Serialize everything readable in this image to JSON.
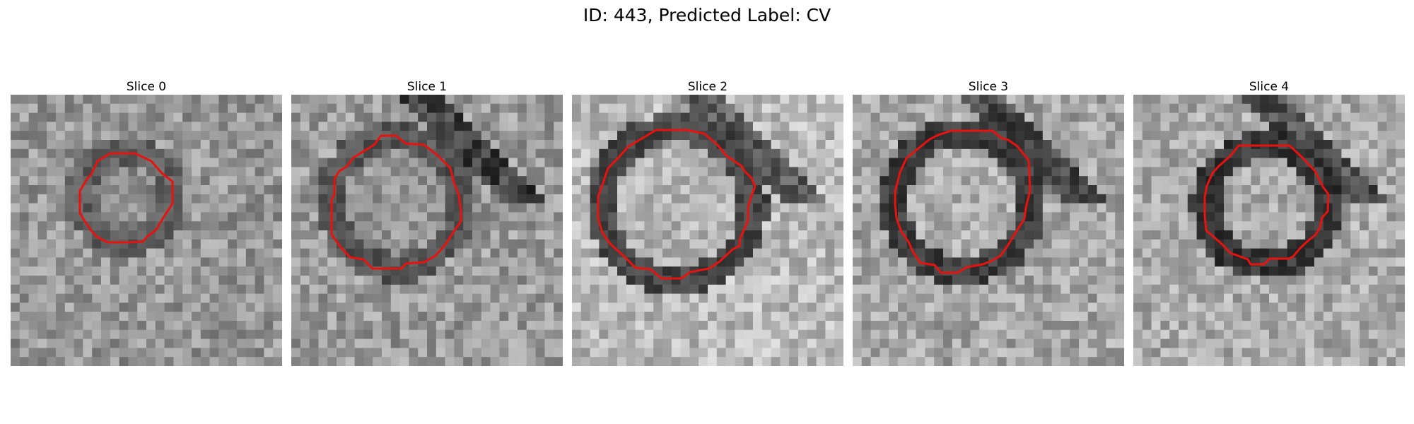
{
  "figure": {
    "title": "ID: 443, Predicted Label: CV"
  },
  "slices": [
    {
      "label": "Slice 0",
      "seed": 11,
      "bg": 150,
      "ring_dark": 95,
      "inner": 140,
      "outline_color": "#e8120e"
    },
    {
      "label": "Slice 1",
      "seed": 23,
      "bg": 155,
      "ring_dark": 85,
      "inner": 150,
      "outline_color": "#e8120e"
    },
    {
      "label": "Slice 2",
      "seed": 37,
      "bg": 185,
      "ring_dark": 70,
      "inner": 180,
      "outline_color": "#e8120e"
    },
    {
      "label": "Slice 3",
      "seed": 41,
      "bg": 165,
      "ring_dark": 60,
      "inner": 175,
      "outline_color": "#e8120e"
    },
    {
      "label": "Slice 4",
      "seed": 53,
      "bg": 170,
      "ring_dark": 55,
      "inner": 170,
      "outline_color": "#e8120e"
    }
  ]
}
